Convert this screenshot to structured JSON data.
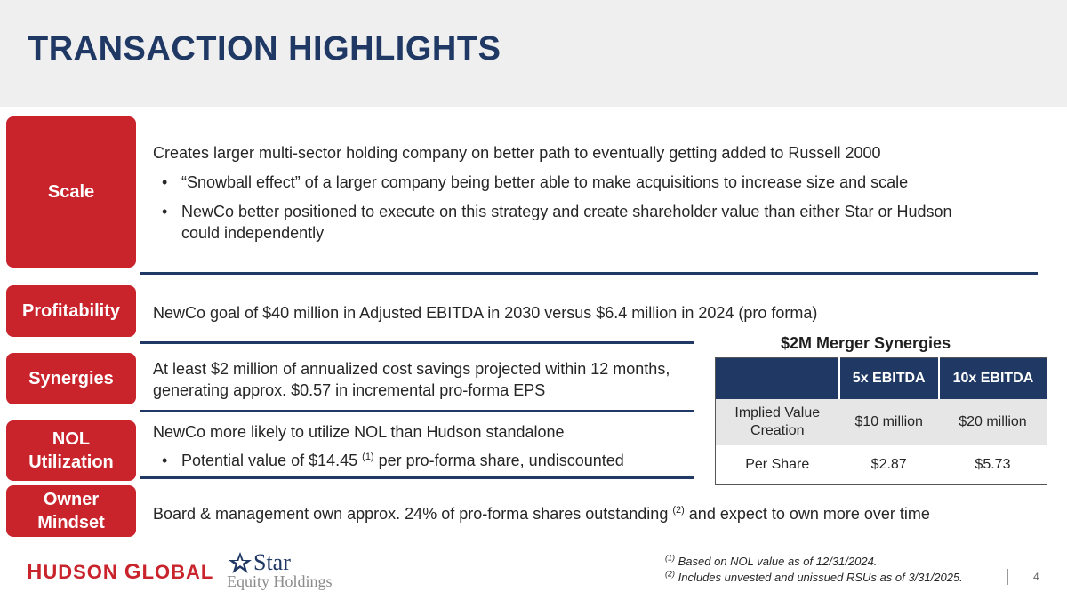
{
  "title": "TRANSACTION HIGHLIGHTS",
  "labels": {
    "scale": "Scale",
    "profitability": "Profitability",
    "synergies": "Synergies",
    "nol_line1": "NOL",
    "nol_line2": "Utilization",
    "owner_line1": "Owner",
    "owner_line2": "Mindset"
  },
  "scale": {
    "lead": "Creates larger multi-sector holding company on better path to eventually getting added to Russell 2000",
    "bullets": [
      "“Snowball effect” of a larger company being better able to make acquisitions to increase size and scale",
      "NewCo better positioned to execute on this strategy and create shareholder value than either Star or Hudson could independently"
    ]
  },
  "profitability": {
    "text": "NewCo goal of $40 million in Adjusted EBITDA in 2030 versus $6.4 million in 2024 (pro forma)"
  },
  "synergies": {
    "text": "At least $2 million of annualized cost savings projected within 12 months, generating approx. $0.57 in incremental pro-forma EPS"
  },
  "nol": {
    "lead": "NewCo more likely to utilize NOL than Hudson standalone",
    "bullet_pre": "Potential value of $14.45 ",
    "bullet_sup": "(1)",
    "bullet_post": " per pro-forma share, undiscounted"
  },
  "owner": {
    "pre": "Board & management own approx. 24% of pro-forma shares outstanding ",
    "sup": "(2)",
    "post": " and expect to own more over time"
  },
  "table": {
    "title": "$2M Merger Synergies",
    "headers": [
      "",
      "5x EBITDA",
      "10x EBITDA"
    ],
    "rows": [
      {
        "label_line1": "Implied Value",
        "label_line2": "Creation",
        "c1": "$10 million",
        "c2": "$20 million"
      },
      {
        "label_line1": "Per Share",
        "label_line2": "",
        "c1": "$2.87",
        "c2": "$5.73"
      }
    ]
  },
  "footnotes": [
    {
      "mark": "(1)",
      "text": " Based on NOL value as of 12/31/2024."
    },
    {
      "mark": "(2)",
      "text": " Includes unvested and unissued RSUs as of 3/31/2025."
    }
  ],
  "page_number": "4",
  "logos": {
    "hudson_h": "H",
    "hudson_rest1": "UDSON ",
    "hudson_g": "G",
    "hudson_rest2": "LOBAL",
    "star": "Star",
    "equity": "Equity Holdings"
  },
  "colors": {
    "navy": "#1f3864",
    "red": "#c9232c",
    "header_bg": "#efefef"
  }
}
